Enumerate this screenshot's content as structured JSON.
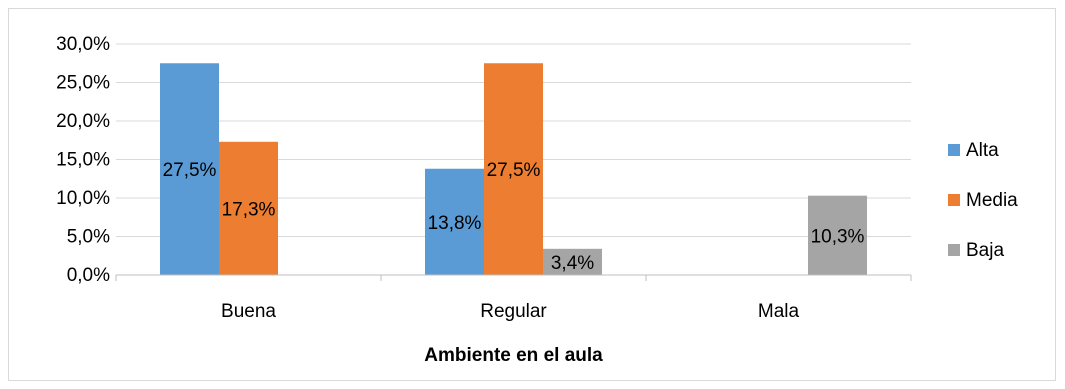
{
  "chart_data": {
    "type": "bar",
    "title": "",
    "xlabel": "Ambiente en el aula",
    "ylabel": "",
    "categories": [
      "Buena",
      "Regular",
      "Mala"
    ],
    "series": [
      {
        "name": "Alta",
        "color": "#5b9bd5",
        "values": [
          27.5,
          13.8,
          0
        ],
        "labels": [
          "27,5%",
          "13,8%",
          ""
        ]
      },
      {
        "name": "Media",
        "color": "#ed7d31",
        "values": [
          17.3,
          27.5,
          0
        ],
        "labels": [
          "17,3%",
          "27,5%",
          ""
        ]
      },
      {
        "name": "Baja",
        "color": "#a5a5a5",
        "values": [
          0,
          3.4,
          10.3
        ],
        "labels": [
          "",
          "3,4%",
          "10,3%"
        ]
      }
    ],
    "ylim": [
      0,
      30
    ],
    "yticks": [
      "0,0%",
      "5,0%",
      "10,0%",
      "15,0%",
      "20,0%",
      "25,0%",
      "30,0%"
    ],
    "grid": true,
    "legend_position": "right"
  }
}
